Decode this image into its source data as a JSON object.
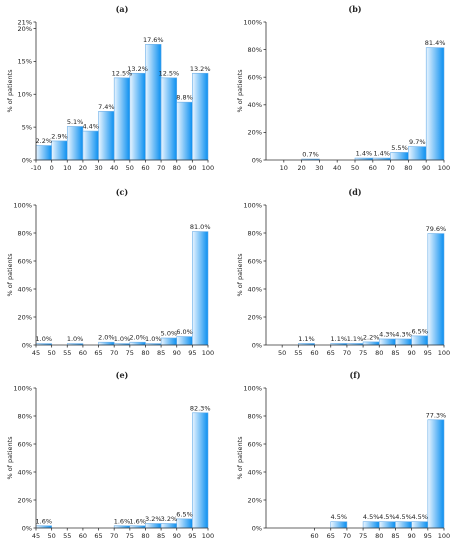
{
  "chart_data": [
    {
      "type": "bar",
      "title": "(a)",
      "ylabel": "% of patients",
      "yticks": [
        "0%",
        "5%",
        "10%",
        "15%",
        "20%",
        "21%"
      ],
      "ylim": [
        0,
        21
      ],
      "xticks": [
        "-10",
        "0",
        "10",
        "20",
        "30",
        "40",
        "50",
        "60",
        "70",
        "80",
        "90",
        "100"
      ],
      "bins": [
        [
          -10,
          0
        ],
        [
          0,
          10
        ],
        [
          10,
          20
        ],
        [
          20,
          30
        ],
        [
          30,
          40
        ],
        [
          40,
          50
        ],
        [
          50,
          60
        ],
        [
          60,
          70
        ],
        [
          70,
          80
        ],
        [
          80,
          90
        ],
        [
          90,
          100
        ]
      ],
      "values": [
        2.2,
        2.9,
        5.1,
        4.4,
        7.4,
        12.5,
        13.2,
        17.6,
        12.5,
        8.8,
        13.2
      ],
      "labels": [
        "2.2%",
        "2.9%",
        "5.1%",
        "4.4%",
        "7.4%",
        "12.5%",
        "13.2%",
        "17.6%",
        "12.5%",
        "8.8%",
        "13.2%"
      ]
    },
    {
      "type": "bar",
      "title": "(b)",
      "ylabel": "% of patients",
      "yticks": [
        "0%",
        "20%",
        "40%",
        "60%",
        "80%",
        "100%"
      ],
      "ylim": [
        0,
        100
      ],
      "xticks": [
        "10",
        "20",
        "30",
        "40",
        "50",
        "60",
        "70",
        "80",
        "90",
        "100"
      ],
      "bins": [
        [
          20,
          30
        ],
        [
          50,
          60
        ],
        [
          60,
          70
        ],
        [
          70,
          80
        ],
        [
          80,
          90
        ],
        [
          90,
          100
        ]
      ],
      "values": [
        0.7,
        1.4,
        1.4,
        5.5,
        9.7,
        81.4
      ],
      "labels": [
        "0.7%",
        "1.4%",
        "1.4%",
        "5.5%",
        "9.7%",
        "81.4%"
      ]
    },
    {
      "type": "bar",
      "title": "(c)",
      "ylabel": "% of patients",
      "yticks": [
        "0%",
        "20%",
        "40%",
        "60%",
        "80%",
        "100%"
      ],
      "ylim": [
        0,
        100
      ],
      "xticks": [
        "45",
        "50",
        "55",
        "60",
        "65",
        "70",
        "75",
        "80",
        "85",
        "90",
        "95",
        "100"
      ],
      "bins": [
        [
          45,
          50
        ],
        [
          55,
          60
        ],
        [
          65,
          70
        ],
        [
          70,
          75
        ],
        [
          75,
          80
        ],
        [
          80,
          85
        ],
        [
          85,
          90
        ],
        [
          90,
          95
        ],
        [
          95,
          100
        ]
      ],
      "values": [
        1.0,
        1.0,
        2.0,
        1.0,
        2.0,
        1.0,
        5.0,
        6.0,
        81.0
      ],
      "labels": [
        "1.0%",
        "1.0%",
        "2.0%",
        "1.0%",
        "2.0%",
        "1.0%",
        "5.0%",
        "6.0%",
        "81.0%"
      ]
    },
    {
      "type": "bar",
      "title": "(d)",
      "ylabel": "% of patients",
      "yticks": [
        "0%",
        "20%",
        "40%",
        "60%",
        "80%",
        "100%"
      ],
      "ylim": [
        0,
        100
      ],
      "xticks": [
        "50",
        "55",
        "60",
        "65",
        "70",
        "75",
        "80",
        "85",
        "90",
        "95",
        "100"
      ],
      "bins": [
        [
          55,
          60
        ],
        [
          65,
          70
        ],
        [
          70,
          75
        ],
        [
          75,
          80
        ],
        [
          80,
          85
        ],
        [
          85,
          90
        ],
        [
          90,
          95
        ],
        [
          95,
          100
        ]
      ],
      "values": [
        1.1,
        1.1,
        1.1,
        2.2,
        4.3,
        4.3,
        6.5,
        79.6
      ],
      "labels": [
        "1.1%",
        "1.1%",
        "1.1%",
        "2.2%",
        "4.3%",
        "4.3%",
        "6.5%",
        "79.6%"
      ]
    },
    {
      "type": "bar",
      "title": "(e)",
      "ylabel": "% of patients",
      "yticks": [
        "0%",
        "20%",
        "40%",
        "60%",
        "80%",
        "100%"
      ],
      "ylim": [
        0,
        100
      ],
      "xticks": [
        "45",
        "50",
        "55",
        "60",
        "65",
        "70",
        "75",
        "80",
        "85",
        "90",
        "95",
        "100"
      ],
      "bins": [
        [
          45,
          50
        ],
        [
          70,
          75
        ],
        [
          75,
          80
        ],
        [
          80,
          85
        ],
        [
          85,
          90
        ],
        [
          90,
          95
        ],
        [
          95,
          100
        ]
      ],
      "values": [
        1.6,
        1.6,
        1.6,
        3.2,
        3.2,
        6.5,
        82.3
      ],
      "labels": [
        "1.6%",
        "1.6%",
        "1.6%",
        "3.2%",
        "3.2%",
        "6.5%",
        "82.3%"
      ]
    },
    {
      "type": "bar",
      "title": "(f)",
      "ylabel": "% of patients",
      "yticks": [
        "0%",
        "20%",
        "40%",
        "60%",
        "80%",
        "100%"
      ],
      "ylim": [
        0,
        100
      ],
      "xticks": [
        "60",
        "65",
        "70",
        "75",
        "80",
        "85",
        "90",
        "95",
        "100"
      ],
      "bins": [
        [
          65,
          70
        ],
        [
          75,
          80
        ],
        [
          80,
          85
        ],
        [
          85,
          90
        ],
        [
          90,
          95
        ],
        [
          95,
          100
        ]
      ],
      "values": [
        4.5,
        4.5,
        4.5,
        4.5,
        4.5,
        77.3
      ],
      "labels": [
        "4.5%",
        "4.5%",
        "4.5%",
        "4.5%",
        "4.5%",
        "77.3%"
      ]
    }
  ]
}
